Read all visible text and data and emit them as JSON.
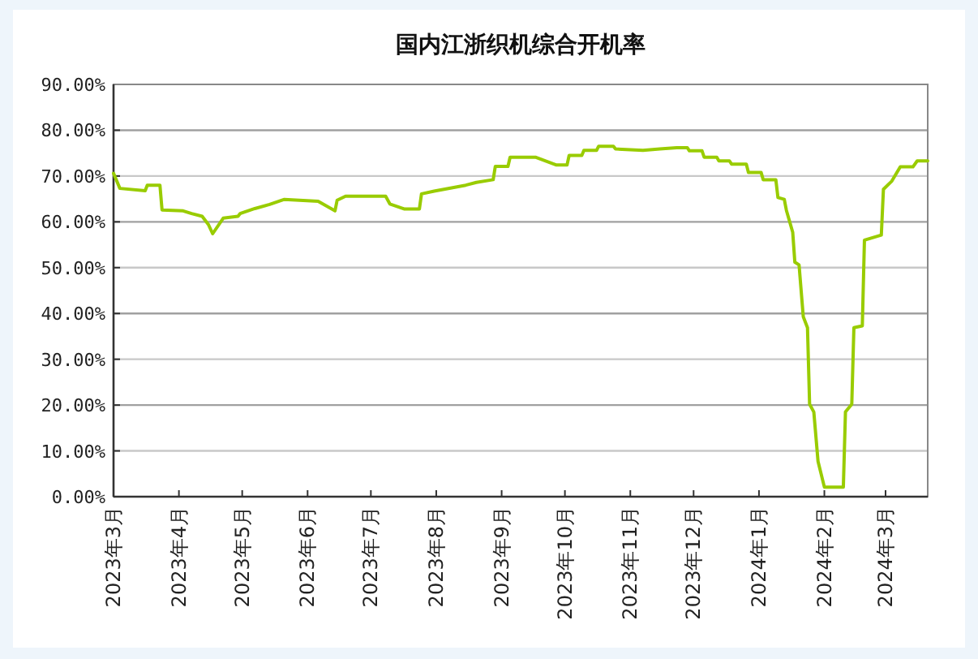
{
  "chart_data": {
    "type": "line",
    "title": "国内江浙织机综合开机率",
    "x": [
      "2023-03-01",
      "2023-03-04",
      "2023-03-16",
      "2023-03-17",
      "2023-03-23",
      "2023-03-24",
      "2023-04-03",
      "2023-04-07",
      "2023-04-12",
      "2023-04-15",
      "2023-04-17",
      "2023-04-22",
      "2023-04-29",
      "2023-04-30",
      "2023-05-07",
      "2023-05-14",
      "2023-05-21",
      "2023-06-06",
      "2023-06-14",
      "2023-06-15",
      "2023-06-19",
      "2023-07-08",
      "2023-07-10",
      "2023-07-17",
      "2023-07-24",
      "2023-07-25",
      "2023-07-31",
      "2023-08-15",
      "2023-08-20",
      "2023-08-28",
      "2023-08-29",
      "2023-09-04",
      "2023-09-05",
      "2023-09-17",
      "2023-09-27",
      "2023-10-02",
      "2023-10-03",
      "2023-10-09",
      "2023-10-10",
      "2023-10-16",
      "2023-10-17",
      "2023-10-24",
      "2023-10-25",
      "2023-11-07",
      "2023-11-15",
      "2023-11-23",
      "2023-11-28",
      "2023-11-29",
      "2023-12-05",
      "2023-12-06",
      "2023-12-12",
      "2023-12-13",
      "2023-12-18",
      "2023-12-19",
      "2023-12-26",
      "2023-12-27",
      "2024-01-02",
      "2024-01-03",
      "2024-01-09",
      "2024-01-10",
      "2024-01-13",
      "2024-01-14",
      "2024-01-17",
      "2024-01-18",
      "2024-01-20",
      "2024-01-22",
      "2024-01-24",
      "2024-01-25",
      "2024-01-27",
      "2024-01-29",
      "2024-02-01",
      "2024-02-10",
      "2024-02-11",
      "2024-02-14",
      "2024-02-15",
      "2024-02-19",
      "2024-02-20",
      "2024-02-28",
      "2024-02-29",
      "2024-03-04",
      "2024-03-08",
      "2024-03-14",
      "2024-03-16",
      "2024-03-21"
    ],
    "series": [
      {
        "color": "#99cc00",
        "values": [
          70.6,
          67.3,
          66.8,
          68.0,
          68.0,
          62.6,
          62.4,
          61.8,
          61.2,
          59.4,
          57.4,
          60.8,
          61.2,
          61.8,
          62.9,
          63.8,
          64.9,
          64.5,
          62.4,
          64.7,
          65.6,
          65.6,
          63.9,
          62.8,
          62.8,
          66.1,
          66.7,
          68.0,
          68.6,
          69.2,
          72.1,
          72.1,
          74.1,
          74.1,
          72.4,
          72.4,
          74.5,
          74.5,
          75.6,
          75.6,
          76.5,
          76.5,
          75.9,
          75.6,
          75.9,
          76.2,
          76.2,
          75.5,
          75.5,
          74.1,
          74.1,
          73.3,
          73.3,
          72.6,
          72.6,
          70.8,
          70.8,
          69.2,
          69.2,
          65.3,
          64.9,
          62.5,
          57.7,
          51.2,
          50.6,
          39.3,
          36.9,
          20.2,
          18.5,
          7.7,
          2.1,
          2.1,
          18.5,
          20.2,
          36.9,
          37.3,
          56.0,
          57.1,
          67.1,
          68.9,
          72.0,
          72.0,
          73.3,
          73.3
        ]
      }
    ],
    "xlim": [
      "2023-03-01",
      "2024-03-21"
    ],
    "xticks": [
      {
        "value": "2023-03-01",
        "label": "2023年3月"
      },
      {
        "value": "2023-04-01",
        "label": "2023年4月"
      },
      {
        "value": "2023-05-01",
        "label": "2023年5月"
      },
      {
        "value": "2023-06-01",
        "label": "2023年6月"
      },
      {
        "value": "2023-07-01",
        "label": "2023年7月"
      },
      {
        "value": "2023-08-01",
        "label": "2023年8月"
      },
      {
        "value": "2023-09-01",
        "label": "2023年9月"
      },
      {
        "value": "2023-10-01",
        "label": "2023年10月"
      },
      {
        "value": "2023-11-01",
        "label": "2023年11月"
      },
      {
        "value": "2023-12-01",
        "label": "2023年12月"
      },
      {
        "value": "2024-01-01",
        "label": "2024年1月"
      },
      {
        "value": "2024-02-01",
        "label": "2024年2月"
      },
      {
        "value": "2024-03-01",
        "label": "2024年3月"
      }
    ],
    "ylim": [
      0,
      90
    ],
    "yticks": [
      {
        "value": 0,
        "label": "0.00%"
      },
      {
        "value": 10,
        "label": "10.00%"
      },
      {
        "value": 20,
        "label": "20.00%"
      },
      {
        "value": 30,
        "label": "30.00%"
      },
      {
        "value": 40,
        "label": "40.00%"
      },
      {
        "value": 50,
        "label": "50.00%"
      },
      {
        "value": 60,
        "label": "60.00%"
      },
      {
        "value": 70,
        "label": "70.00%"
      },
      {
        "value": 80,
        "label": "80.00%"
      },
      {
        "value": 90,
        "label": "90.00%"
      }
    ],
    "grid": "y",
    "marker": "none",
    "line_style": "solid"
  }
}
